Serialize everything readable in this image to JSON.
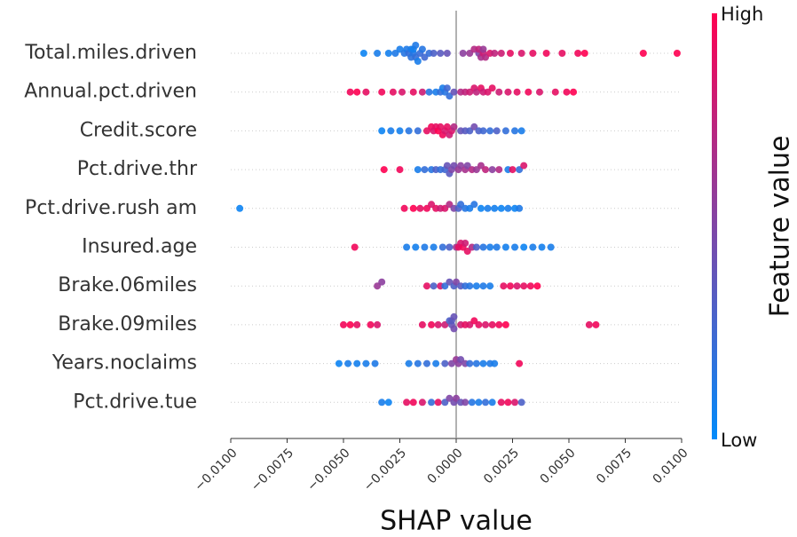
{
  "chart_data": {
    "type": "beeswarm",
    "xlabel": "SHAP value",
    "xlim": [
      -0.01,
      0.01
    ],
    "xticks": [
      {
        "value": -0.01,
        "label": "−0.0100"
      },
      {
        "value": -0.0075,
        "label": "−0.0075"
      },
      {
        "value": -0.005,
        "label": "−0.0050"
      },
      {
        "value": -0.0025,
        "label": "−0.0025"
      },
      {
        "value": 0,
        "label": "0.0000"
      },
      {
        "value": 0.0025,
        "label": "0.0025"
      },
      {
        "value": 0.005,
        "label": "0.0050"
      },
      {
        "value": 0.0075,
        "label": "0.0075"
      },
      {
        "value": 0.01,
        "label": "0.0100"
      }
    ],
    "colorbar": {
      "label": "Feature value",
      "high_label": "High",
      "low_label": "Low",
      "low_color": "#008bfb",
      "high_color": "#ff0051"
    },
    "series": [
      {
        "name": "Total.miles.driven",
        "values": [
          -0.0041,
          -0.0035,
          -0.003,
          -0.0027,
          -0.0025,
          -0.0023,
          -0.0022,
          -0.0021,
          -0.002,
          -0.002,
          -0.0019,
          -0.0019,
          -0.0018,
          -0.0018,
          -0.0017,
          -0.0016,
          -0.0015,
          -0.0014,
          -0.0012,
          -0.001,
          -0.0007,
          -0.0004,
          0.0003,
          0.0006,
          0.0008,
          0.001,
          0.001,
          0.0011,
          0.0012,
          0.0012,
          0.0013,
          0.0015,
          0.0017,
          0.002,
          0.0024,
          0.0029,
          0.0034,
          0.004,
          0.0047,
          0.0054,
          0.0057,
          0.0083,
          0.0098
        ],
        "feature_values": [
          0.05,
          0.1,
          0.08,
          0.12,
          0.1,
          0.15,
          0.12,
          0.2,
          0.1,
          0.18,
          0.15,
          0.08,
          0.2,
          0.12,
          0.1,
          0.22,
          0.15,
          0.25,
          0.2,
          0.3,
          0.35,
          0.4,
          0.55,
          0.6,
          0.7,
          0.5,
          0.75,
          0.65,
          0.8,
          0.6,
          0.7,
          0.85,
          0.75,
          0.8,
          0.9,
          0.85,
          0.9,
          0.95,
          0.9,
          0.95,
          1,
          1,
          1
        ]
      },
      {
        "name": "Annual.pct.driven",
        "values": [
          -0.0047,
          -0.0044,
          -0.004,
          -0.0033,
          -0.0028,
          -0.0024,
          -0.0019,
          -0.0015,
          -0.0012,
          -0.0009,
          -0.0007,
          -0.0006,
          -0.0005,
          -0.0004,
          -0.0003,
          -0.0001,
          0.0002,
          0.0004,
          0.0006,
          0.0008,
          0.0009,
          0.0011,
          0.0012,
          0.0014,
          0.0016,
          0.0019,
          0.0023,
          0.0027,
          0.0032,
          0.0037,
          0.0044,
          0.0049,
          0.0052
        ],
        "feature_values": [
          0.95,
          1,
          0.9,
          0.95,
          0.9,
          0.85,
          0.9,
          0.8,
          0.15,
          0.1,
          0.2,
          0.1,
          0.15,
          0.25,
          0.2,
          0.4,
          0.7,
          0.75,
          0.8,
          0.85,
          0.75,
          0.9,
          0.8,
          0.85,
          0.9,
          0.8,
          0.85,
          0.9,
          0.95,
          0.85,
          0.9,
          0.95,
          1
        ]
      },
      {
        "name": "Credit.score",
        "values": [
          -0.0033,
          -0.0029,
          -0.0025,
          -0.0021,
          -0.0017,
          -0.0013,
          -0.0011,
          -0.001,
          -0.0009,
          -0.0008,
          -0.0007,
          -0.0006,
          -0.0005,
          -0.0004,
          -0.0003,
          -0.0002,
          -0.0001,
          0.0002,
          0.0004,
          0.0006,
          0.0008,
          0.001,
          0.0012,
          0.0015,
          0.0018,
          0.0022,
          0.0026,
          0.0029
        ],
        "feature_values": [
          0.05,
          0.1,
          0.08,
          0.15,
          0.2,
          0.9,
          0.95,
          0.85,
          0.9,
          1,
          0.9,
          0.95,
          0.85,
          0.9,
          0.8,
          0.85,
          0.7,
          0.4,
          0.35,
          0.3,
          0.45,
          0.3,
          0.25,
          0.2,
          0.3,
          0.2,
          0.15,
          0.1
        ]
      },
      {
        "name": "Pct.drive.thr",
        "values": [
          -0.0032,
          -0.0025,
          -0.0017,
          -0.0014,
          -0.0011,
          -0.0009,
          -0.0007,
          -0.0005,
          -0.0004,
          -0.0003,
          -0.0002,
          -0.0001,
          0.0001,
          0.0002,
          0.0004,
          0.0005,
          0.0007,
          0.0009,
          0.0011,
          0.0013,
          0.0016,
          0.0019,
          0.0023,
          0.0025,
          0.0028,
          0.003
        ],
        "feature_values": [
          1,
          0.95,
          0.1,
          0.2,
          0.15,
          0.3,
          0.2,
          0.25,
          0.4,
          0.35,
          0.5,
          0.45,
          0.6,
          0.55,
          0.65,
          0.5,
          0.7,
          0.6,
          0.65,
          0.75,
          0.55,
          0.7,
          0.1,
          0.9,
          0.2,
          0.85
        ]
      },
      {
        "name": "Pct.drive.rush am",
        "values": [
          -0.0096,
          -0.0023,
          -0.0019,
          -0.0016,
          -0.0013,
          -0.0011,
          -0.0009,
          -0.0007,
          -0.0005,
          -0.0003,
          -0.0001,
          0.0001,
          0.0002,
          0.0004,
          0.0006,
          0.0008,
          0.0011,
          0.0014,
          0.0017,
          0.002,
          0.0023,
          0.0026,
          0.0028
        ],
        "feature_values": [
          0.05,
          0.95,
          1,
          0.9,
          0.95,
          0.85,
          0.9,
          0.8,
          0.85,
          0.7,
          0.5,
          0.3,
          0.2,
          0.15,
          0.1,
          0.15,
          0.05,
          0.1,
          0.08,
          0.05,
          0.1,
          0.05,
          0.12
        ]
      },
      {
        "name": "Insured.age",
        "values": [
          -0.0045,
          -0.0022,
          -0.0018,
          -0.0014,
          -0.001,
          -0.0006,
          -0.0003,
          0.0,
          0.0001,
          0.0002,
          0.0003,
          0.0004,
          0.0005,
          0.0007,
          0.0009,
          0.0012,
          0.0015,
          0.0018,
          0.0022,
          0.0026,
          0.003,
          0.0034,
          0.0038,
          0.0042
        ],
        "feature_values": [
          0.95,
          0.1,
          0.08,
          0.12,
          0.1,
          0.2,
          0.3,
          0.6,
          0.9,
          0.85,
          0.95,
          0.8,
          0.9,
          0.7,
          0.3,
          0.15,
          0.1,
          0.12,
          0.08,
          0.1,
          0.05,
          0.1,
          0.08,
          0.1
        ]
      },
      {
        "name": "Brake.06miles",
        "values": [
          -0.0035,
          -0.0033,
          -0.0013,
          -0.001,
          -0.0007,
          -0.0005,
          -0.0003,
          -0.0001,
          0.0,
          0.0002,
          0.0004,
          0.0006,
          0.0009,
          0.0012,
          0.0015,
          0.0021,
          0.0024,
          0.0027,
          0.003,
          0.0033,
          0.0036
        ],
        "feature_values": [
          0.6,
          0.55,
          0.9,
          0.3,
          0.85,
          0.2,
          0.4,
          0.3,
          0.5,
          0.35,
          0.2,
          0.15,
          0.1,
          0.12,
          0.1,
          0.9,
          0.95,
          0.85,
          0.9,
          0.95,
          1
        ]
      },
      {
        "name": "Brake.09miles",
        "values": [
          -0.005,
          -0.0047,
          -0.0044,
          -0.0038,
          -0.0035,
          -0.0015,
          -0.0011,
          -0.0008,
          -0.0005,
          -0.0003,
          -0.0002,
          -0.0002,
          -0.0001,
          -0.0001,
          0.0002,
          0.0004,
          0.0006,
          0.0008,
          0.001,
          0.0013,
          0.0016,
          0.0019,
          0.0022,
          0.0059,
          0.0062
        ],
        "feature_values": [
          0.95,
          1,
          0.9,
          0.95,
          0.85,
          0.9,
          0.95,
          0.85,
          0.8,
          0.3,
          0.4,
          0.35,
          0.45,
          0.4,
          0.8,
          0.9,
          0.85,
          0.95,
          0.9,
          0.85,
          0.9,
          0.95,
          1,
          0.9,
          0.95
        ]
      },
      {
        "name": "Years.noclaims",
        "values": [
          -0.0052,
          -0.0048,
          -0.0044,
          -0.004,
          -0.0036,
          -0.0021,
          -0.0017,
          -0.0013,
          -0.0009,
          -0.0005,
          -0.0002,
          0.0,
          0.0001,
          0.0002,
          0.0004,
          0.0006,
          0.0009,
          0.0012,
          0.0015,
          0.0017,
          0.0028
        ],
        "feature_values": [
          0.05,
          0.1,
          0.08,
          0.1,
          0.12,
          0.1,
          0.15,
          0.2,
          0.1,
          0.3,
          0.5,
          0.6,
          0.55,
          0.45,
          0.5,
          0.2,
          0.15,
          0.1,
          0.12,
          0.1,
          0.95
        ]
      },
      {
        "name": "Pct.drive.tue",
        "values": [
          -0.0033,
          -0.003,
          -0.0022,
          -0.0019,
          -0.0015,
          -0.0011,
          -0.0008,
          -0.0005,
          -0.0003,
          -0.0001,
          0.0,
          0.0002,
          0.0004,
          0.0007,
          0.001,
          0.0013,
          0.0016,
          0.002,
          0.0023,
          0.0026,
          0.0029
        ],
        "feature_values": [
          0.1,
          0.05,
          0.9,
          0.95,
          0.85,
          0.2,
          0.9,
          0.3,
          0.5,
          0.45,
          0.55,
          0.4,
          0.5,
          0.15,
          0.1,
          0.2,
          0.1,
          0.9,
          0.95,
          0.85,
          0.3
        ]
      }
    ]
  }
}
